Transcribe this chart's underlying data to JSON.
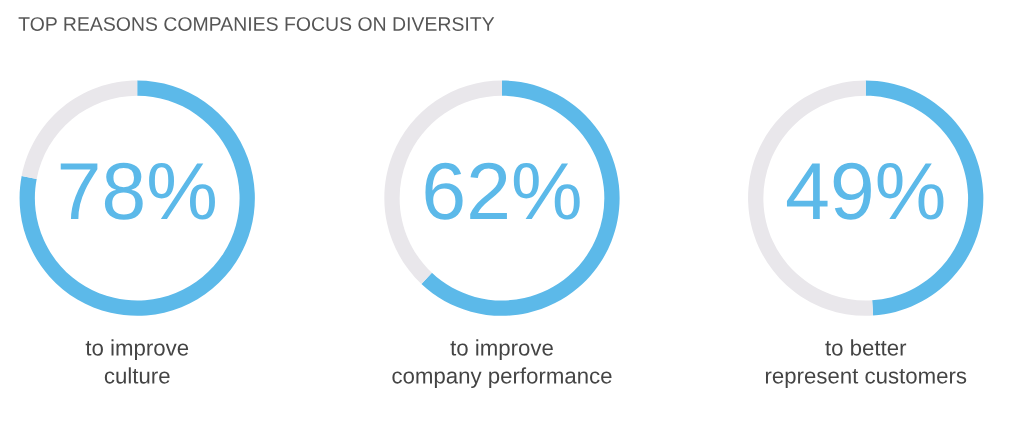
{
  "chart_data": [
    {
      "type": "donut",
      "title": "TOP REASONS COMPANIES FOCUS ON DIVERSITY",
      "categories": [
        "to improve\nculture",
        null
      ],
      "values": [
        78,
        22
      ],
      "colors": [
        "#5cb9e9",
        "#e9e7eb"
      ],
      "value_labels": [
        "78%",
        null
      ]
    },
    {
      "type": "donut",
      "categories": [
        "to improve\ncompany performance",
        null
      ],
      "values": [
        62,
        38
      ],
      "colors": [
        "#5cb9e9",
        "#e9e7eb"
      ],
      "value_labels": [
        "62%",
        null
      ]
    },
    {
      "type": "donut",
      "categories": [
        "to better\nrepresent customers",
        null
      ],
      "values": [
        49,
        51
      ],
      "colors": [
        "#5cb9e9",
        "#e9e7eb"
      ],
      "value_labels": [
        "49%",
        null
      ]
    }
  ]
}
